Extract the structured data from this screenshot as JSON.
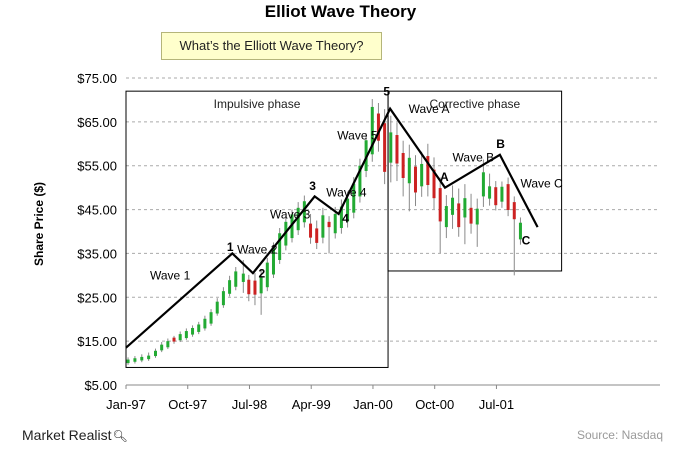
{
  "header": {
    "title": "Elliot Wave Theory",
    "question": "What’s the Elliott Wave Theory?"
  },
  "footer": {
    "brand": "Market Realist",
    "brand_icon": "magnifier-icon",
    "source": "Source: Nasdaq"
  },
  "colors": {
    "up_candle": "#22aa33",
    "down_candle": "#cc2222",
    "wave_line": "#000000",
    "grid": "#aaaaaa"
  },
  "chart_data": {
    "type": "candlestick-with-wave-overlay",
    "title": "Elliot Wave Theory",
    "ylabel": "Share Price ($)",
    "xlabel": "",
    "y_ticks": [
      "$5.00",
      "$15.00",
      "$25.00",
      "$35.00",
      "$45.00",
      "$55.00",
      "$65.00",
      "$75.00"
    ],
    "y_tick_values": [
      5,
      15,
      25,
      35,
      45,
      55,
      65,
      75
    ],
    "ylim": [
      5,
      75
    ],
    "x_ticks": [
      "Jan-97",
      "Oct-97",
      "Jul-98",
      "Apr-99",
      "Jan-00",
      "Oct-00",
      "Jul-01"
    ],
    "x_tick_months": [
      0,
      9,
      18,
      27,
      36,
      45,
      54
    ],
    "xlim": [
      0,
      60
    ],
    "grid": "horizontal dashed",
    "phases": [
      {
        "label": "Impulsive phase",
        "start": 0,
        "end": 38.2,
        "top": 72,
        "bottom": 9
      },
      {
        "label": "Corrective phase",
        "start": 38.2,
        "end": 63.5,
        "top": 72,
        "bottom": 31
      }
    ],
    "wave_line": [
      {
        "x": 0,
        "y": 13.5
      },
      {
        "x": 15.5,
        "y": 35
      },
      {
        "x": 18.5,
        "y": 30.5
      },
      {
        "x": 27.5,
        "y": 48
      },
      {
        "x": 31,
        "y": 44
      },
      {
        "x": 38.5,
        "y": 68
      },
      {
        "x": 46.5,
        "y": 50
      },
      {
        "x": 54.5,
        "y": 57.5
      },
      {
        "x": 60,
        "y": 41
      }
    ],
    "point_labels": [
      {
        "text": "1",
        "x": 15.2,
        "y": 35.5
      },
      {
        "text": "2",
        "x": 19.8,
        "y": 29.5
      },
      {
        "text": "3",
        "x": 27.2,
        "y": 49.5
      },
      {
        "text": "4",
        "x": 32.0,
        "y": 42.0
      },
      {
        "text": "5",
        "x": 38.0,
        "y": 71.0
      },
      {
        "text": "A",
        "x": 46.4,
        "y": 51.5
      },
      {
        "text": "B",
        "x": 54.6,
        "y": 59.0
      },
      {
        "text": "C",
        "x": 58.3,
        "y": 37.0
      }
    ],
    "wave_labels": [
      {
        "text": "Wave 1",
        "x": 3.5,
        "y": 29
      },
      {
        "text": "Wave 2",
        "x": 16.2,
        "y": 35
      },
      {
        "text": "Wave 3",
        "x": 21.0,
        "y": 43
      },
      {
        "text": "Wave 4",
        "x": 29.2,
        "y": 48
      },
      {
        "text": "Wave 5",
        "x": 30.8,
        "y": 61
      },
      {
        "text": "Wave A",
        "x": 41.2,
        "y": 67
      },
      {
        "text": "Wave B",
        "x": 47.6,
        "y": 56
      },
      {
        "text": "Wave C",
        "x": 57.5,
        "y": 50
      }
    ],
    "candles": [
      {
        "x": 0.3,
        "o": 10.0,
        "c": 10.8,
        "h": 11.3,
        "l": 9.6
      },
      {
        "x": 1.3,
        "o": 10.3,
        "c": 11.1,
        "h": 11.6,
        "l": 9.9
      },
      {
        "x": 2.3,
        "o": 10.6,
        "c": 11.4,
        "h": 12.0,
        "l": 10.2
      },
      {
        "x": 3.3,
        "o": 10.9,
        "c": 11.7,
        "h": 12.4,
        "l": 10.5
      },
      {
        "x": 4.3,
        "o": 11.6,
        "c": 12.8,
        "h": 13.3,
        "l": 11.2
      },
      {
        "x": 5.2,
        "o": 12.9,
        "c": 14.2,
        "h": 14.8,
        "l": 12.5
      },
      {
        "x": 6.1,
        "o": 13.6,
        "c": 15.0,
        "h": 15.6,
        "l": 13.2
      },
      {
        "x": 7.0,
        "o": 15.8,
        "c": 14.9,
        "h": 16.2,
        "l": 14.4
      },
      {
        "x": 7.9,
        "o": 15.2,
        "c": 16.6,
        "h": 17.2,
        "l": 14.8
      },
      {
        "x": 8.8,
        "o": 15.7,
        "c": 17.3,
        "h": 17.9,
        "l": 15.3
      },
      {
        "x": 9.7,
        "o": 16.5,
        "c": 18.0,
        "h": 18.6,
        "l": 16.0
      },
      {
        "x": 10.6,
        "o": 17.1,
        "c": 18.8,
        "h": 19.4,
        "l": 16.6
      },
      {
        "x": 11.5,
        "o": 17.9,
        "c": 20.1,
        "h": 20.8,
        "l": 17.4
      },
      {
        "x": 12.4,
        "o": 19.0,
        "c": 21.6,
        "h": 22.3,
        "l": 18.5
      },
      {
        "x": 13.3,
        "o": 21.3,
        "c": 24.0,
        "h": 24.8,
        "l": 20.8
      },
      {
        "x": 14.2,
        "o": 23.2,
        "c": 26.4,
        "h": 27.3,
        "l": 22.6
      },
      {
        "x": 15.1,
        "o": 25.8,
        "c": 28.9,
        "h": 29.9,
        "l": 25.2
      },
      {
        "x": 16.0,
        "o": 27.4,
        "c": 30.9,
        "h": 31.9,
        "l": 26.6
      },
      {
        "x": 17.1,
        "o": 28.5,
        "c": 30.4,
        "h": 33.5,
        "l": 26.0
      },
      {
        "x": 17.9,
        "o": 29.0,
        "c": 25.7,
        "h": 30.1,
        "l": 24.1
      },
      {
        "x": 18.8,
        "o": 28.8,
        "c": 25.6,
        "h": 30.5,
        "l": 23.2
      },
      {
        "x": 19.7,
        "o": 25.9,
        "c": 29.5,
        "h": 31.3,
        "l": 21.0
      },
      {
        "x": 20.6,
        "o": 27.3,
        "c": 32.9,
        "h": 34.0,
        "l": 26.4
      },
      {
        "x": 21.5,
        "o": 30.2,
        "c": 36.3,
        "h": 37.5,
        "l": 29.4
      },
      {
        "x": 22.4,
        "o": 33.5,
        "c": 39.6,
        "h": 40.8,
        "l": 32.6
      },
      {
        "x": 23.3,
        "o": 36.8,
        "c": 42.2,
        "h": 43.4,
        "l": 35.7
      },
      {
        "x": 24.2,
        "o": 38.5,
        "c": 43.9,
        "h": 45.0,
        "l": 37.5
      },
      {
        "x": 25.1,
        "o": 40.3,
        "c": 45.4,
        "h": 46.7,
        "l": 39.2
      },
      {
        "x": 26.0,
        "o": 42.1,
        "c": 46.9,
        "h": 48.2,
        "l": 40.9
      },
      {
        "x": 26.9,
        "o": 41.8,
        "c": 38.6,
        "h": 44.0,
        "l": 37.2
      },
      {
        "x": 27.8,
        "o": 40.7,
        "c": 37.4,
        "h": 42.5,
        "l": 36.0
      },
      {
        "x": 28.7,
        "o": 38.6,
        "c": 43.7,
        "h": 45.4,
        "l": 37.3
      },
      {
        "x": 29.6,
        "o": 42.2,
        "c": 41.0,
        "h": 43.5,
        "l": 35.0
      },
      {
        "x": 30.5,
        "o": 39.6,
        "c": 44.0,
        "h": 45.6,
        "l": 38.4
      },
      {
        "x": 31.4,
        "o": 40.8,
        "c": 45.7,
        "h": 47.3,
        "l": 39.5
      },
      {
        "x": 32.3,
        "o": 42.3,
        "c": 47.5,
        "h": 49.1,
        "l": 40.9
      },
      {
        "x": 33.2,
        "o": 44.3,
        "c": 50.9,
        "h": 52.4,
        "l": 43.0
      },
      {
        "x": 34.1,
        "o": 48.0,
        "c": 55.0,
        "h": 56.6,
        "l": 46.6
      },
      {
        "x": 35.0,
        "o": 53.8,
        "c": 60.8,
        "h": 62.4,
        "l": 52.4
      },
      {
        "x": 35.9,
        "o": 57.6,
        "c": 68.4,
        "h": 70.2,
        "l": 55.9
      },
      {
        "x": 36.8,
        "o": 66.9,
        "c": 60.7,
        "h": 69.3,
        "l": 58.2
      },
      {
        "x": 37.7,
        "o": 64.7,
        "c": 53.6,
        "h": 67.9,
        "l": 50.8
      },
      {
        "x": 38.6,
        "o": 55.7,
        "c": 62.6,
        "h": 66.4,
        "l": 51.2
      },
      {
        "x": 39.5,
        "o": 62.0,
        "c": 55.5,
        "h": 64.8,
        "l": 51.5
      },
      {
        "x": 40.4,
        "o": 57.9,
        "c": 52.2,
        "h": 60.7,
        "l": 48.0
      },
      {
        "x": 41.3,
        "o": 51.0,
        "c": 56.8,
        "h": 59.8,
        "l": 44.6
      },
      {
        "x": 42.2,
        "o": 54.8,
        "c": 48.9,
        "h": 57.4,
        "l": 45.8
      },
      {
        "x": 43.1,
        "o": 50.3,
        "c": 55.4,
        "h": 58.2,
        "l": 47.9
      },
      {
        "x": 44.0,
        "o": 57.2,
        "c": 50.6,
        "h": 60.0,
        "l": 48.0
      },
      {
        "x": 44.9,
        "o": 54.1,
        "c": 47.6,
        "h": 56.9,
        "l": 45.1
      },
      {
        "x": 45.8,
        "o": 49.9,
        "c": 42.3,
        "h": 52.3,
        "l": 35.1
      },
      {
        "x": 46.7,
        "o": 41.0,
        "c": 45.8,
        "h": 48.3,
        "l": 38.5
      },
      {
        "x": 47.6,
        "o": 43.8,
        "c": 47.7,
        "h": 50.5,
        "l": 40.6
      },
      {
        "x": 48.5,
        "o": 46.4,
        "c": 41.0,
        "h": 49.8,
        "l": 38.8
      },
      {
        "x": 49.4,
        "o": 43.2,
        "c": 47.6,
        "h": 50.8,
        "l": 37.1
      },
      {
        "x": 50.3,
        "o": 45.4,
        "c": 41.8,
        "h": 48.6,
        "l": 39.5
      },
      {
        "x": 51.2,
        "o": 41.6,
        "c": 45.2,
        "h": 47.5,
        "l": 36.5
      },
      {
        "x": 52.1,
        "o": 48.0,
        "c": 53.5,
        "h": 56.4,
        "l": 45.6
      },
      {
        "x": 53.0,
        "o": 47.5,
        "c": 50.3,
        "h": 53.2,
        "l": 45.9
      },
      {
        "x": 53.9,
        "o": 50.1,
        "c": 46.0,
        "h": 51.5,
        "l": 44.8
      },
      {
        "x": 54.8,
        "o": 46.8,
        "c": 50.2,
        "h": 51.4,
        "l": 45.4
      },
      {
        "x": 55.7,
        "o": 50.8,
        "c": 44.9,
        "h": 52.3,
        "l": 43.5
      },
      {
        "x": 56.6,
        "o": 46.7,
        "c": 42.8,
        "h": 48.0,
        "l": 30.0
      },
      {
        "x": 57.5,
        "o": 38.2,
        "c": 42.0,
        "h": 43.2,
        "l": 37.0
      }
    ]
  }
}
